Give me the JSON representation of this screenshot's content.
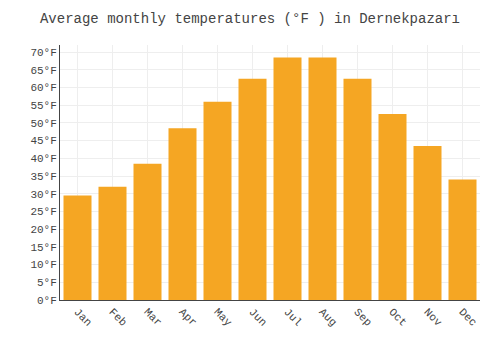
{
  "chart_data": {
    "type": "bar",
    "title": "Average monthly temperatures (°F ) in Dernekpazarı",
    "categories": [
      "Jan",
      "Feb",
      "Mar",
      "Apr",
      "May",
      "Jun",
      "Jul",
      "Aug",
      "Sep",
      "Oct",
      "Nov",
      "Dec"
    ],
    "values": [
      29.5,
      32.0,
      38.5,
      48.5,
      56.0,
      62.5,
      68.5,
      68.5,
      62.5,
      52.5,
      43.5,
      34.0
    ],
    "color": "#F5A623",
    "ylim": [
      0,
      72
    ],
    "yticks": [
      {
        "value": 0,
        "label": "0°F"
      },
      {
        "value": 5,
        "label": "5°F"
      },
      {
        "value": 10,
        "label": "10°F"
      },
      {
        "value": 15,
        "label": "15°F"
      },
      {
        "value": 20,
        "label": "20°F"
      },
      {
        "value": 25,
        "label": "25°F"
      },
      {
        "value": 30,
        "label": "30°F"
      },
      {
        "value": 35,
        "label": "35°F"
      },
      {
        "value": 40,
        "label": "40°F"
      },
      {
        "value": 45,
        "label": "45°F"
      },
      {
        "value": 50,
        "label": "50°F"
      },
      {
        "value": 55,
        "label": "55°F"
      },
      {
        "value": 60,
        "label": "60°F"
      },
      {
        "value": 65,
        "label": "65°F"
      },
      {
        "value": 70,
        "label": "70°F"
      }
    ],
    "grid": true
  }
}
